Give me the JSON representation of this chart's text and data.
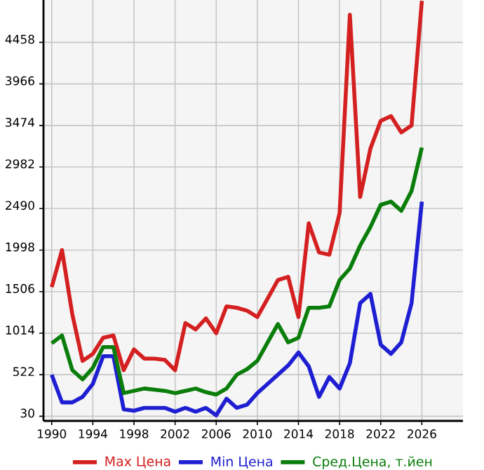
{
  "chart_data": {
    "type": "line",
    "x": [
      1990,
      1991,
      1992,
      1993,
      1994,
      1995,
      1996,
      1997,
      1998,
      1999,
      2000,
      2001,
      2002,
      2003,
      2004,
      2005,
      2006,
      2007,
      2008,
      2009,
      2010,
      2011,
      2012,
      2013,
      2014,
      2015,
      2016,
      2017,
      2018,
      2019,
      2020,
      2021,
      2022,
      2023,
      2024,
      2025,
      2026
    ],
    "series": [
      {
        "name": "Max Цена",
        "color": "#d42020",
        "values": [
          1560,
          1998,
          1240,
          686,
          768,
          960,
          986,
          576,
          822,
          713,
          713,
          697,
          576,
          1134,
          1058,
          1189,
          1014,
          1331,
          1315,
          1280,
          1205,
          1424,
          1643,
          1681,
          1205,
          2315,
          1970,
          1943,
          2435,
          4786,
          2627,
          3201,
          3529,
          3584,
          3392,
          3474,
          4950
        ]
      },
      {
        "name": "Min Цена",
        "color": "#1e1ed2",
        "values": [
          522,
          194,
          194,
          260,
          413,
          741,
          741,
          112,
          96,
          129,
          129,
          129,
          85,
          129,
          85,
          129,
          41,
          238,
          129,
          167,
          304,
          413,
          522,
          632,
          785,
          621,
          260,
          495,
          358,
          659,
          1370,
          1479,
          878,
          769,
          905,
          1370,
          2572
        ]
      },
      {
        "name": "Сред.Цена, т.йен",
        "color": "#0a7d0a",
        "values": [
          894,
          987,
          577,
          467,
          604,
          850,
          850,
          304,
          331,
          358,
          345,
          331,
          304,
          330,
          358,
          315,
          287,
          358,
          522,
          588,
          686,
          905,
          1123,
          905,
          960,
          1315,
          1315,
          1331,
          1643,
          1780,
          2052,
          2271,
          2534,
          2572,
          2463,
          2698,
          3212
        ]
      }
    ],
    "xlim": [
      1989.2,
      2030
    ],
    "ylim": [
      -25,
      4960
    ],
    "xticks": [
      1990,
      1994,
      1998,
      2002,
      2006,
      2010,
      2014,
      2018,
      2022,
      2026
    ],
    "yticks": [
      30,
      522,
      1014,
      1506,
      1998,
      2490,
      2982,
      3474,
      3966,
      4458
    ],
    "grid": true,
    "legend": "bottom",
    "marker": "none",
    "line_style": "solid"
  }
}
